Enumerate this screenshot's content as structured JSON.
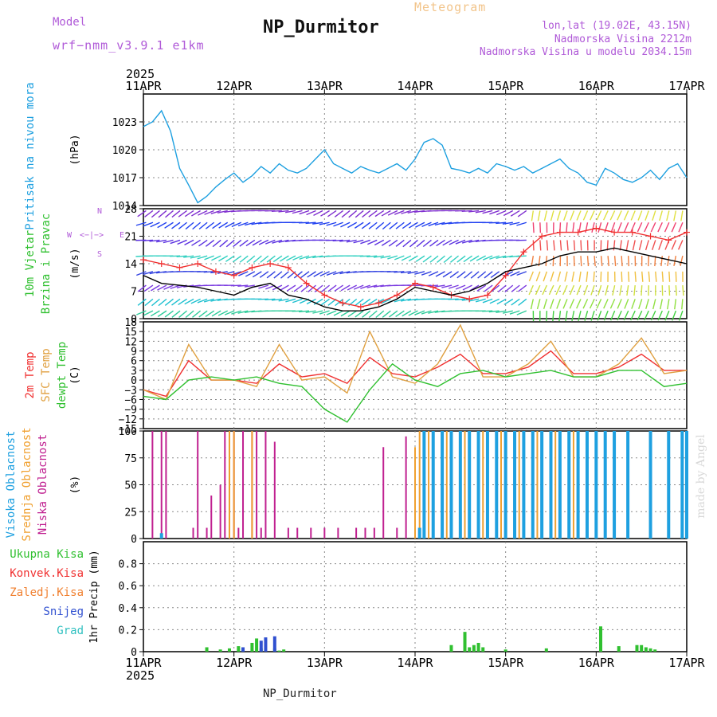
{
  "header": {
    "model_label": "Model",
    "model_value": "wrf−nmm_v3.9.1 e1km",
    "meteogram": "Meteogram",
    "station": "NP_Durmitor",
    "lonlat": "lon,lat (19.02E, 43.15N)",
    "altitude": "Nadmorska Visina 2212m",
    "altitude_model": "Nadmorska Visina u modelu 2034.15m",
    "credit": "made by Angel"
  },
  "footer": {
    "station": "NP_Durmitor"
  },
  "colors": {
    "pressure": "#1ea0e0",
    "t2m": "#f03030",
    "sfc": "#e0a040",
    "dewpt": "#30c030",
    "wind_speed": "#000000",
    "wind_gust": "#f03030",
    "high_cloud": "#1ea0e0",
    "mid_cloud": "#f0a030",
    "low_cloud": "#c02090",
    "precip_total": "#30c030",
    "precip_snow": "#3050d0",
    "title_purple": "#b05ad8",
    "grid": "#888888"
  },
  "chart_data": [
    {
      "type": "line",
      "panel": "pressure",
      "ylabel_left": "Pritisak na nivou mora",
      "ylabel_unit": "(hPa)",
      "ylim": [
        1014,
        1026
      ],
      "yticks": [
        1014,
        1017,
        1020,
        1023
      ],
      "ytick_labels": [
        "1014",
        "1017",
        "1020",
        "1023"
      ],
      "x_year": "2025",
      "x_dates": [
        "11APR",
        "12APR",
        "13APR",
        "14APR",
        "15APR",
        "16APR",
        "17APR"
      ],
      "series": [
        {
          "name": "Pritisak na nivou mora",
          "color": "#1ea0e0",
          "x": [
            0,
            0.1,
            0.2,
            0.3,
            0.4,
            0.5,
            0.6,
            0.7,
            0.8,
            0.9,
            1.0,
            1.1,
            1.2,
            1.3,
            1.4,
            1.5,
            1.6,
            1.7,
            1.8,
            1.9,
            2.0,
            2.1,
            2.2,
            2.3,
            2.4,
            2.5,
            2.6,
            2.7,
            2.8,
            2.9,
            3.0,
            3.1,
            3.2,
            3.3,
            3.4,
            3.5,
            3.6,
            3.7,
            3.8,
            3.9,
            4.0,
            4.1,
            4.2,
            4.3,
            4.4,
            4.5,
            4.6,
            4.7,
            4.8,
            4.9,
            5.0,
            5.1,
            5.2,
            5.3,
            5.4,
            5.5,
            5.6,
            5.7,
            5.8,
            5.9,
            6.0
          ],
          "values": [
            1022.5,
            1023.0,
            1024.2,
            1022.0,
            1018.0,
            1016.2,
            1014.3,
            1015.0,
            1016.0,
            1016.8,
            1017.5,
            1016.5,
            1017.2,
            1018.2,
            1017.5,
            1018.5,
            1017.8,
            1017.5,
            1018.0,
            1019.0,
            1020.0,
            1018.5,
            1018.0,
            1017.5,
            1018.2,
            1017.8,
            1017.5,
            1018.0,
            1018.5,
            1017.8,
            1019.0,
            1020.8,
            1021.2,
            1020.5,
            1018.0,
            1017.8,
            1017.5,
            1018.0,
            1017.5,
            1018.5,
            1018.2,
            1017.8,
            1018.2,
            1017.5,
            1018.0,
            1018.5,
            1019.0,
            1018.0,
            1017.5,
            1016.5,
            1016.2,
            1018.0,
            1017.5,
            1016.8,
            1016.5,
            1017.0,
            1017.8,
            1016.8,
            1018.0,
            1018.5,
            1017.0
          ]
        }
      ]
    },
    {
      "type": "line",
      "panel": "wind",
      "ylabel_left": "10m Vjetar Brzina i Pravac",
      "ylabel_unit": "(m/s)",
      "ylim": [
        0,
        28
      ],
      "yticks": [
        0,
        7,
        14,
        21,
        28
      ],
      "ytick_labels": [
        "0",
        "7",
        "14",
        "21",
        "28"
      ],
      "compass_labels": [
        "N",
        "W",
        "<−|−>",
        "E",
        "S"
      ],
      "series": [
        {
          "name": "wind speed",
          "color": "#000000",
          "x": [
            0,
            0.2,
            0.4,
            0.6,
            0.8,
            1.0,
            1.2,
            1.4,
            1.6,
            1.8,
            2.0,
            2.2,
            2.4,
            2.6,
            2.8,
            3.0,
            3.2,
            3.4,
            3.6,
            3.8,
            4.0,
            4.2,
            4.4,
            4.6,
            4.8,
            5.0,
            5.2,
            5.4,
            5.6,
            5.8,
            6.0
          ],
          "values": [
            11,
            9,
            8.5,
            8,
            7,
            6,
            8,
            9,
            6,
            5,
            3,
            2,
            2,
            3,
            5,
            8,
            7,
            6,
            7,
            9,
            12,
            13,
            14,
            16,
            17,
            17,
            18,
            17,
            16,
            15,
            14
          ]
        },
        {
          "name": "wind gust",
          "color": "#f03030",
          "x": [
            0,
            0.2,
            0.4,
            0.6,
            0.8,
            1.0,
            1.2,
            1.4,
            1.6,
            1.8,
            2.0,
            2.2,
            2.4,
            2.6,
            2.8,
            3.0,
            3.2,
            3.4,
            3.6,
            3.8,
            4.0,
            4.2,
            4.4,
            4.6,
            4.8,
            5.0,
            5.2,
            5.4,
            5.6,
            5.8,
            6.0
          ],
          "values": [
            15,
            14,
            13,
            14,
            12,
            11,
            13,
            14,
            13,
            9,
            6,
            4,
            3,
            4,
            6,
            9,
            8,
            6,
            5,
            6,
            11,
            17,
            21,
            22,
            22,
            23,
            22,
            22,
            21,
            20,
            22
          ]
        }
      ]
    },
    {
      "type": "line",
      "panel": "temperature",
      "ylabel_left": [
        "2m Temp",
        "SFC Temp",
        "dewpt Temp"
      ],
      "ylabel_unit": "(C)",
      "ylim": [
        -15,
        18
      ],
      "yticks": [
        -15,
        -12,
        -9,
        -6,
        -3,
        0,
        3,
        6,
        9,
        12,
        15,
        18
      ],
      "ytick_labels": [
        "−15",
        "−12",
        "−9",
        "−6",
        "−3",
        "0",
        "3",
        "6",
        "9",
        "12",
        "15",
        "18"
      ],
      "series": [
        {
          "name": "2m Temp",
          "color": "#f03030",
          "x": [
            0,
            0.25,
            0.5,
            0.75,
            1.0,
            1.25,
            1.5,
            1.75,
            2.0,
            2.25,
            2.5,
            2.75,
            3.0,
            3.25,
            3.5,
            3.75,
            4.0,
            4.25,
            4.5,
            4.75,
            5.0,
            5.25,
            5.5,
            5.75,
            6.0
          ],
          "values": [
            -3,
            -5,
            6,
            0,
            0,
            -1,
            5,
            1,
            2,
            -1,
            7,
            2,
            1,
            4,
            8,
            2,
            2,
            4,
            9,
            2,
            2,
            4,
            8,
            3,
            3
          ]
        },
        {
          "name": "SFC Temp",
          "color": "#e0a040",
          "x": [
            0,
            0.25,
            0.5,
            0.75,
            1.0,
            1.25,
            1.5,
            1.75,
            2.0,
            2.25,
            2.5,
            2.75,
            3.0,
            3.25,
            3.5,
            3.75,
            4.0,
            4.25,
            4.5,
            4.75,
            5.0,
            5.25,
            5.5,
            5.75,
            6.0
          ],
          "values": [
            -3,
            -6,
            11,
            0,
            0,
            -2,
            11,
            0,
            1,
            -4,
            15,
            1,
            -1,
            5,
            17,
            1,
            1,
            5,
            12,
            1,
            1,
            5,
            13,
            2,
            3
          ]
        },
        {
          "name": "dewpt Temp",
          "color": "#30c030",
          "x": [
            0,
            0.25,
            0.5,
            0.75,
            1.0,
            1.25,
            1.5,
            1.75,
            2.0,
            2.25,
            2.5,
            2.75,
            3.0,
            3.25,
            3.5,
            3.75,
            4.0,
            4.25,
            4.5,
            4.75,
            5.0,
            5.25,
            5.5,
            5.75,
            6.0
          ],
          "values": [
            -5,
            -6,
            0,
            1,
            0,
            1,
            -1,
            -2,
            -9,
            -13,
            -3,
            5,
            0,
            -2,
            2,
            3,
            1,
            2,
            3,
            1,
            1,
            3,
            3,
            -2,
            -1
          ]
        }
      ]
    },
    {
      "type": "bar",
      "panel": "cloud",
      "ylabel_left": [
        "Visoka Oblacnost",
        "Srednja Oblacnost",
        "Niska Oblacnost"
      ],
      "ylabel_unit": "(%)",
      "ylim": [
        0,
        100
      ],
      "yticks": [
        0,
        25,
        50,
        75,
        100
      ],
      "ytick_labels": [
        "0",
        "25",
        "50",
        "75",
        "100"
      ],
      "series": [
        {
          "name": "Niska Oblacnost",
          "color": "#c02090",
          "x": [
            0.1,
            0.2,
            0.25,
            0.55,
            0.6,
            0.7,
            0.75,
            0.85,
            0.9,
            0.95,
            1.0,
            1.05,
            1.1,
            1.2,
            1.25,
            1.3,
            1.35,
            1.45,
            1.6,
            1.7,
            1.85,
            2.0,
            2.15,
            2.35,
            2.45,
            2.55,
            2.65,
            2.8,
            2.9,
            3.2
          ],
          "values": [
            100,
            100,
            100,
            10,
            100,
            10,
            40,
            50,
            100,
            100,
            100,
            10,
            100,
            100,
            100,
            10,
            100,
            90,
            10,
            10,
            10,
            10,
            10,
            10,
            10,
            10,
            85,
            10,
            95,
            90
          ]
        },
        {
          "name": "Srednja Oblacnost",
          "color": "#f0a030",
          "x": [
            0.95,
            1.0,
            1.2,
            3.0,
            3.05,
            3.15,
            3.35,
            3.55,
            3.75,
            3.95,
            4.15,
            4.35,
            4.55,
            4.75
          ],
          "values": [
            100,
            100,
            100,
            85,
            100,
            100,
            100,
            100,
            100,
            100,
            100,
            100,
            100,
            100
          ],
          "note": "dense alternating bars"
        },
        {
          "name": "Visoka Oblacnost",
          "color": "#1ea0e0",
          "x": [
            0.2,
            3.05,
            3.1,
            3.2,
            3.3,
            3.4,
            3.5,
            3.6,
            3.7,
            3.8,
            3.9,
            4.0,
            4.1,
            4.2,
            4.3,
            4.4,
            4.5,
            4.6,
            4.7,
            4.8,
            4.9,
            5.0,
            5.1,
            5.2,
            5.35,
            5.6,
            5.8,
            5.95,
            6.0
          ],
          "values": [
            5,
            10,
            100,
            100,
            100,
            100,
            100,
            100,
            100,
            100,
            100,
            100,
            100,
            100,
            100,
            100,
            100,
            100,
            100,
            100,
            100,
            100,
            100,
            100,
            100,
            100,
            100,
            100,
            100
          ]
        }
      ]
    },
    {
      "type": "bar",
      "panel": "precip",
      "ylabel_left": [
        "Ukupna Kisa",
        "Konvek.Kisa",
        "Zaledj.Kisa",
        "Snijeg",
        "Grad"
      ],
      "ylabel_left_colors": [
        "#30c030",
        "#f03030",
        "#f08030",
        "#3050d0",
        "#30c0c0"
      ],
      "ylabel_unit": "1hr Precip (mm)",
      "ylim": [
        0,
        1.0
      ],
      "yticks": [
        0,
        0.2,
        0.4,
        0.6,
        0.8
      ],
      "ytick_labels": [
        "0",
        "0.2",
        "0.4",
        "0.6",
        "0.8"
      ],
      "series": [
        {
          "name": "Ukupna Kisa",
          "color": "#30c030",
          "x": [
            0.7,
            0.85,
            0.95,
            1.05,
            1.2,
            1.25,
            1.3,
            1.45,
            1.5,
            1.55,
            3.4,
            3.55,
            3.6,
            3.65,
            3.7,
            3.75,
            4.0,
            4.45,
            5.05,
            5.25,
            5.45,
            5.5,
            5.55,
            5.6,
            5.65
          ],
          "values": [
            0.04,
            0.02,
            0.03,
            0.05,
            0.08,
            0.12,
            0.03,
            0.03,
            0.01,
            0.02,
            0.06,
            0.18,
            0.04,
            0.06,
            0.08,
            0.04,
            0.02,
            0.03,
            0.23,
            0.05,
            0.06,
            0.06,
            0.04,
            0.03,
            0.02
          ]
        },
        {
          "name": "Snijeg",
          "color": "#3050d0",
          "x": [
            1.1,
            1.3,
            1.35,
            1.45
          ],
          "values": [
            0.04,
            0.1,
            0.13,
            0.14
          ]
        }
      ]
    }
  ]
}
